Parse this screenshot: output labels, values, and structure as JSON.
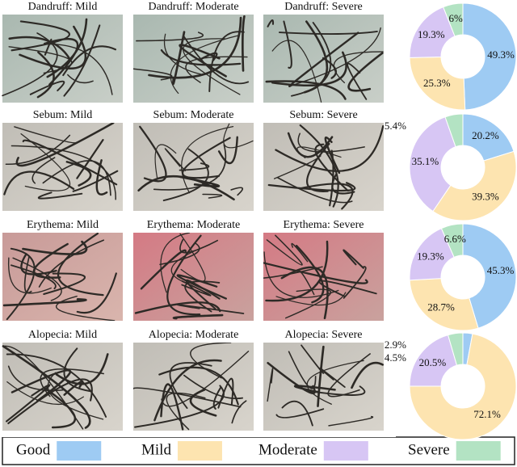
{
  "panels": {
    "rows": [
      [
        "Dandruff: Mild",
        "Dandruff: Moderate",
        "Dandruff: Severe"
      ],
      [
        "Sebum: Mild",
        "Sebum: Moderate",
        "Sebum: Severe"
      ],
      [
        "Erythema: Mild",
        "Erythema: Moderate",
        "Erythema: Severe"
      ],
      [
        "Alopecia: Mild",
        "Alopecia: Moderate",
        "Alopecia: Severe"
      ]
    ]
  },
  "chart_data": [
    {
      "type": "donut",
      "categories": [
        "Good",
        "Mild",
        "Moderate",
        "Severe"
      ],
      "colors": [
        "#9ecbf3",
        "#fde4b0",
        "#d7c6f4",
        "#b3e3c3"
      ],
      "values": [
        49.3,
        25.3,
        19.3,
        6
      ],
      "value_labels": [
        "49.3%",
        "25.3%",
        "19.3%",
        "6%"
      ]
    },
    {
      "type": "donut",
      "categories": [
        "Good",
        "Mild",
        "Moderate",
        "Severe"
      ],
      "colors": [
        "#9ecbf3",
        "#fde4b0",
        "#d7c6f4",
        "#b3e3c3"
      ],
      "values": [
        20.2,
        39.3,
        35.1,
        5.4
      ],
      "value_labels": [
        "20.2%",
        "39.3%",
        "35.1%",
        "5.4%"
      ]
    },
    {
      "type": "donut",
      "categories": [
        "Good",
        "Mild",
        "Moderate",
        "Severe"
      ],
      "colors": [
        "#9ecbf3",
        "#fde4b0",
        "#d7c6f4",
        "#b3e3c3"
      ],
      "values": [
        45.3,
        28.7,
        19.3,
        6.6
      ],
      "value_labels": [
        "45.3%",
        "28.7%",
        "19.3%",
        "6.6%"
      ]
    },
    {
      "type": "donut",
      "categories": [
        "Good",
        "Mild",
        "Moderate",
        "Severe"
      ],
      "colors": [
        "#9ecbf3",
        "#fde4b0",
        "#d7c6f4",
        "#b3e3c3"
      ],
      "values": [
        2.9,
        72.1,
        20.5,
        4.5
      ],
      "value_labels": [
        "2.9%",
        "72.1%",
        "20.5%",
        "4.5%"
      ]
    }
  ]
}
